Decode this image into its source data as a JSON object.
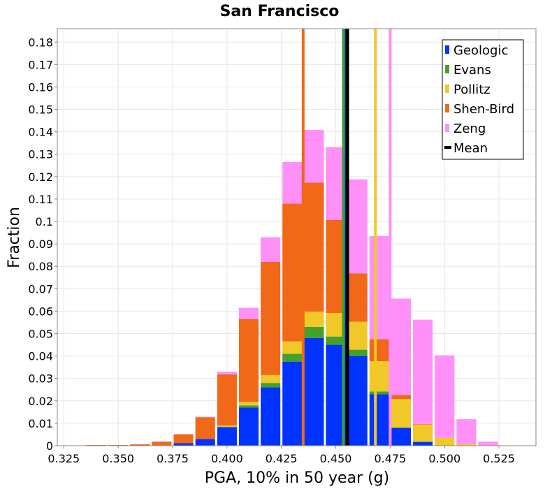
{
  "chart_data": {
    "type": "bar",
    "title": "San Francisco",
    "xlabel": "PGA, 10% in 50 year (g)",
    "ylabel": "Fraction",
    "xlim": [
      0.322,
      0.542
    ],
    "ylim": [
      0,
      0.186
    ],
    "stacked": true,
    "grid": true,
    "legend_position": "top-right",
    "bin_width": 0.01,
    "x": [
      0.33,
      0.34,
      0.35,
      0.36,
      0.37,
      0.38,
      0.39,
      0.4,
      0.41,
      0.42,
      0.43,
      0.44,
      0.45,
      0.46,
      0.47,
      0.48,
      0.49,
      0.5,
      0.51,
      0.52
    ],
    "x_ticks": [
      {
        "value": 0.325,
        "label": "0.325"
      },
      {
        "value": 0.35,
        "label": "0.350"
      },
      {
        "value": 0.375,
        "label": "0.375"
      },
      {
        "value": 0.4,
        "label": "0.400"
      },
      {
        "value": 0.425,
        "label": "0.425"
      },
      {
        "value": 0.45,
        "label": "0.450"
      },
      {
        "value": 0.475,
        "label": "0.475"
      },
      {
        "value": 0.5,
        "label": "0.500"
      },
      {
        "value": 0.525,
        "label": "0.525"
      }
    ],
    "y_ticks": [
      {
        "value": 0,
        "label": "0"
      },
      {
        "value": 0.01,
        "label": "0.01"
      },
      {
        "value": 0.02,
        "label": "0.02"
      },
      {
        "value": 0.03,
        "label": "0.03"
      },
      {
        "value": 0.04,
        "label": "0.04"
      },
      {
        "value": 0.05,
        "label": "0.05"
      },
      {
        "value": 0.06,
        "label": "0.06"
      },
      {
        "value": 0.07,
        "label": "0.07"
      },
      {
        "value": 0.08,
        "label": "0.08"
      },
      {
        "value": 0.09,
        "label": "0.09"
      },
      {
        "value": 0.1,
        "label": "0.1"
      },
      {
        "value": 0.11,
        "label": "0.11"
      },
      {
        "value": 0.12,
        "label": "0.12"
      },
      {
        "value": 0.13,
        "label": "0.13"
      },
      {
        "value": 0.14,
        "label": "0.14"
      },
      {
        "value": 0.15,
        "label": "0.15"
      },
      {
        "value": 0.16,
        "label": "0.16"
      },
      {
        "value": 0.17,
        "label": "0.17"
      },
      {
        "value": 0.18,
        "label": "0.18"
      }
    ],
    "series": [
      {
        "name": "Geologic",
        "color": "#0033ff",
        "values": [
          0.0,
          0.0,
          0.0,
          0.0,
          0.0002,
          0.0011,
          0.003,
          0.0082,
          0.017,
          0.026,
          0.0375,
          0.048,
          0.045,
          0.04,
          0.023,
          0.008,
          0.0017,
          0.0,
          0.0,
          0.0
        ]
      },
      {
        "name": "Evans",
        "color": "#44a02c",
        "values": [
          0.0,
          0.0,
          0.0,
          0.0,
          0.0,
          0.0,
          0.0,
          0.0003,
          0.001,
          0.002,
          0.0035,
          0.005,
          0.0037,
          0.0028,
          0.0012,
          0.0,
          0.0,
          0.0,
          0.0,
          0.0
        ]
      },
      {
        "name": "Pollitz",
        "color": "#f0c828",
        "values": [
          0.0,
          0.0,
          0.0,
          0.0,
          0.0,
          0.0,
          0.0,
          0.0005,
          0.0015,
          0.0035,
          0.0055,
          0.0068,
          0.0105,
          0.0125,
          0.0135,
          0.0128,
          0.0078,
          0.0035,
          0.0008,
          0.0002
        ]
      },
      {
        "name": "Shen-Bird",
        "color": "#f06818",
        "values": [
          0.0,
          0.0003,
          0.0003,
          0.0006,
          0.0016,
          0.004,
          0.0097,
          0.0228,
          0.037,
          0.0505,
          0.0615,
          0.0575,
          0.0415,
          0.0215,
          0.0098,
          0.0018,
          0.0002,
          0.0,
          0.0,
          0.0
        ]
      },
      {
        "name": "Zeng",
        "color": "#ff90f8",
        "values": [
          0.0,
          0.0,
          0.0,
          0.0,
          0.0,
          0.0,
          0.0002,
          0.0012,
          0.005,
          0.011,
          0.0185,
          0.0235,
          0.0325,
          0.042,
          0.046,
          0.043,
          0.0465,
          0.0368,
          0.011,
          0.0016
        ]
      }
    ],
    "vertical_lines": [
      {
        "name": "Geologic",
        "x": 0.4547,
        "color": "#0033ff"
      },
      {
        "name": "Evans",
        "x": 0.4535,
        "color": "#44a02c"
      },
      {
        "name": "Pollitz",
        "x": 0.4682,
        "color": "#f0c828"
      },
      {
        "name": "Shen-Bird",
        "x": 0.435,
        "color": "#f06818"
      },
      {
        "name": "Zeng",
        "x": 0.475,
        "color": "#ff90f8"
      },
      {
        "name": "Mean",
        "x": 0.4553,
        "color": "#000000"
      }
    ],
    "legend": [
      {
        "label": "Geologic",
        "color": "#0033ff",
        "kind": "box"
      },
      {
        "label": "Evans",
        "color": "#44a02c",
        "kind": "box"
      },
      {
        "label": "Pollitz",
        "color": "#f0c828",
        "kind": "box"
      },
      {
        "label": "Shen-Bird",
        "color": "#f06818",
        "kind": "box"
      },
      {
        "label": "Zeng",
        "color": "#ff90f8",
        "kind": "box"
      },
      {
        "label": "Mean",
        "color": "#000000",
        "kind": "line"
      }
    ]
  }
}
